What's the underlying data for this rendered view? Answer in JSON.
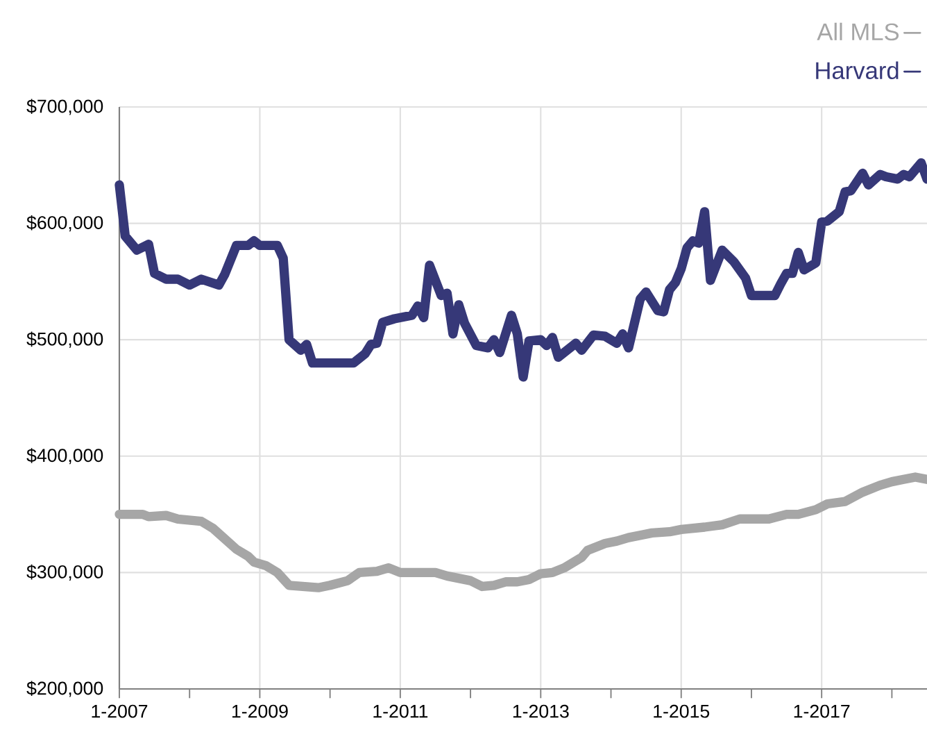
{
  "chart_data": {
    "type": "line",
    "xlim": [
      "2007-01",
      "2018-07"
    ],
    "ylim": [
      200000,
      700000
    ],
    "xticks": [
      {
        "value": "2007-01",
        "label": "1-2007"
      },
      {
        "value": "2008-01",
        "label": null
      },
      {
        "value": "2009-01",
        "label": "1-2009"
      },
      {
        "value": "2010-01",
        "label": null
      },
      {
        "value": "2011-01",
        "label": "1-2011"
      },
      {
        "value": "2012-01",
        "label": null
      },
      {
        "value": "2013-01",
        "label": "1-2013"
      },
      {
        "value": "2014-01",
        "label": null
      },
      {
        "value": "2015-01",
        "label": "1-2015"
      },
      {
        "value": "2016-01",
        "label": null
      },
      {
        "value": "2017-01",
        "label": "1-2017"
      },
      {
        "value": "2018-01",
        "label": null
      }
    ],
    "yticks": [
      {
        "value": 200000,
        "label": "$200,000"
      },
      {
        "value": 300000,
        "label": "$300,000"
      },
      {
        "value": 400000,
        "label": "$400,000"
      },
      {
        "value": 500000,
        "label": "$500,000"
      },
      {
        "value": 600000,
        "label": "$600,000"
      },
      {
        "value": 700000,
        "label": "$700,000"
      }
    ],
    "grid": true,
    "legend": "top right",
    "series": [
      {
        "name": "All MLS",
        "color": "#a6a6a6",
        "x": [
          "2007-01",
          "2007-05",
          "2007-06",
          "2007-09",
          "2007-11",
          "2008-03",
          "2008-05",
          "2008-09",
          "2008-11",
          "2008-12",
          "2009-02",
          "2009-04",
          "2009-06",
          "2009-11",
          "2010-01",
          "2010-04",
          "2010-06",
          "2010-09",
          "2010-11",
          "2011-01",
          "2011-07",
          "2011-09",
          "2012-01",
          "2012-03",
          "2012-05",
          "2012-07",
          "2012-09",
          "2012-11",
          "2013-01",
          "2013-03",
          "2013-05",
          "2013-08",
          "2013-09",
          "2013-12",
          "2014-02",
          "2014-04",
          "2014-08",
          "2014-11",
          "2015-01",
          "2015-05",
          "2015-08",
          "2015-11",
          "2016-04",
          "2016-07",
          "2016-09",
          "2016-12",
          "2017-02",
          "2017-05",
          "2017-08",
          "2017-11",
          "2018-01",
          "2018-03",
          "2018-05",
          "2018-07"
        ],
        "values": [
          350000,
          350000,
          348000,
          349000,
          346000,
          344000,
          338000,
          320000,
          314000,
          309000,
          306000,
          300000,
          289000,
          287000,
          289000,
          293000,
          300000,
          301000,
          304000,
          300000,
          300000,
          297000,
          293000,
          288000,
          289000,
          292000,
          292000,
          294000,
          299000,
          300000,
          304000,
          313000,
          319000,
          325000,
          327000,
          330000,
          334000,
          335000,
          337000,
          339000,
          341000,
          346000,
          346000,
          350000,
          350000,
          354000,
          359000,
          361000,
          369000,
          375000,
          378000,
          380000,
          382000,
          380000
        ]
      },
      {
        "name": "Harvard",
        "color": "#363878",
        "x": [
          "2007-01",
          "2007-02",
          "2007-04",
          "2007-06",
          "2007-07",
          "2007-09",
          "2007-11",
          "2008-01",
          "2008-03",
          "2008-06",
          "2008-07",
          "2008-09",
          "2008-11",
          "2008-12",
          "2009-01",
          "2009-04",
          "2009-05",
          "2009-06",
          "2009-08",
          "2009-09",
          "2009-10",
          "2010-05",
          "2010-07",
          "2010-08",
          "2010-09",
          "2010-10",
          "2010-12",
          "2011-03",
          "2011-04",
          "2011-05",
          "2011-06",
          "2011-08",
          "2011-09",
          "2011-10",
          "2011-11",
          "2011-12",
          "2012-02",
          "2012-04",
          "2012-05",
          "2012-06",
          "2012-08",
          "2012-09",
          "2012-10",
          "2012-11",
          "2013-01",
          "2013-02",
          "2013-03",
          "2013-04",
          "2013-07",
          "2013-08",
          "2013-10",
          "2013-12",
          "2014-02",
          "2014-03",
          "2014-04",
          "2014-06",
          "2014-07",
          "2014-09",
          "2014-10",
          "2014-11",
          "2014-12",
          "2015-01",
          "2015-02",
          "2015-03",
          "2015-04",
          "2015-05",
          "2015-06",
          "2015-08",
          "2015-10",
          "2015-12",
          "2016-01",
          "2016-03",
          "2016-05",
          "2016-06",
          "2016-07",
          "2016-08",
          "2016-09",
          "2016-10",
          "2016-12",
          "2017-01",
          "2017-02",
          "2017-04",
          "2017-05",
          "2017-06",
          "2017-08",
          "2017-09",
          "2017-11",
          "2017-12",
          "2018-02",
          "2018-03",
          "2018-04",
          "2018-06",
          "2018-07"
        ],
        "values": [
          633000,
          589000,
          577000,
          582000,
          557000,
          552000,
          552000,
          547000,
          552000,
          547000,
          556000,
          581000,
          581000,
          585000,
          581000,
          581000,
          570000,
          500000,
          491000,
          496000,
          480000,
          480000,
          488000,
          496000,
          497000,
          515000,
          518000,
          521000,
          529000,
          519000,
          564000,
          538000,
          540000,
          505000,
          530000,
          514000,
          495000,
          493000,
          500000,
          489000,
          521000,
          505000,
          468000,
          499000,
          500000,
          495000,
          502000,
          485000,
          497000,
          491000,
          504000,
          503000,
          497000,
          505000,
          493000,
          535000,
          541000,
          525000,
          524000,
          543000,
          549000,
          561000,
          579000,
          585000,
          583000,
          610000,
          551000,
          577000,
          567000,
          553000,
          538000,
          538000,
          538000,
          548000,
          557000,
          557000,
          575000,
          560000,
          566000,
          601000,
          602000,
          610000,
          627000,
          628000,
          643000,
          633000,
          642000,
          640000,
          638000,
          642000,
          640000,
          652000,
          638000
        ]
      }
    ]
  }
}
